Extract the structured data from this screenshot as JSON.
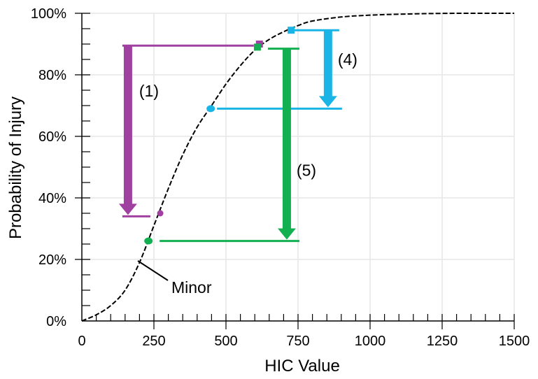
{
  "chart_data": {
    "type": "line",
    "title": "",
    "xlabel": "HIC Value",
    "ylabel": "Probability of Injury",
    "xlim": [
      0,
      1500
    ],
    "ylim": [
      0,
      100
    ],
    "grid": true,
    "xticks": [
      0,
      250,
      500,
      750,
      1000,
      1250,
      1500
    ],
    "xtick_labels": [
      "0",
      "250",
      "500",
      "750",
      "1000",
      "1250",
      "1500"
    ],
    "yticks": [
      0,
      20,
      40,
      60,
      80,
      100
    ],
    "ytick_labels": [
      "0%",
      "20%",
      "40%",
      "60%",
      "80%",
      "100%"
    ],
    "curve": {
      "name": "Minor",
      "style": "dashed",
      "color": "#000000",
      "x": [
        0,
        50,
        100,
        150,
        200,
        250,
        300,
        350,
        400,
        450,
        500,
        550,
        600,
        650,
        700,
        750,
        800,
        900,
        1000,
        1100,
        1200,
        1300,
        1400,
        1500
      ],
      "y": [
        0,
        2,
        5,
        10,
        19,
        31,
        43,
        54,
        63,
        70,
        77,
        83,
        88,
        91.5,
        94,
        96,
        97.5,
        98.8,
        99.4,
        99.7,
        99.9,
        100,
        100,
        100
      ]
    },
    "curve_label": "Minor",
    "annotations": [
      {
        "label": "(1)",
        "color": "#a040a0",
        "start_point": {
          "x": 616,
          "y": 90,
          "marker": "square"
        },
        "end_point": {
          "x": 272,
          "y": 35,
          "marker": "circle"
        },
        "arrow_x": 160,
        "from_y": 89.5,
        "to_y": 34
      },
      {
        "label": "(4)",
        "color": "#1ab4e6",
        "start_point": {
          "x": 726,
          "y": 94.5,
          "marker": "square"
        },
        "end_point": {
          "x": 447,
          "y": 69,
          "marker": "circle"
        },
        "arrow_x": 854,
        "from_y": 94.5,
        "to_y": 69
      },
      {
        "label": "(5)",
        "color": "#12b050",
        "start_point": {
          "x": 609,
          "y": 89,
          "marker": "square"
        },
        "end_point": {
          "x": 231,
          "y": 26,
          "marker": "circle"
        },
        "arrow_x": 711,
        "from_y": 88.5,
        "to_y": 26
      }
    ]
  }
}
